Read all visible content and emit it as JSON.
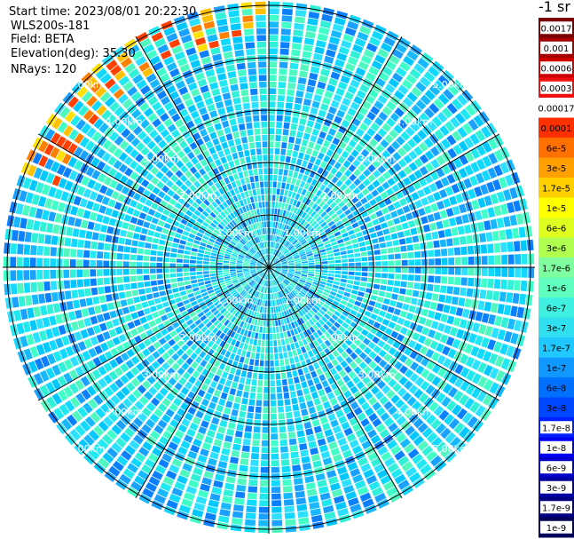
{
  "header": {
    "start_time": "Start time: 2023/08/01 20:22:30",
    "instrument": "WLS200s-181",
    "field": "Field: BETA",
    "elevation": "Elevation(deg): 35.30",
    "nrays": "NRays: 120"
  },
  "colorbar": {
    "unit_label": "-1 sr",
    "ticks": [
      "0.0017",
      "0.001",
      "0.0006",
      "0.0003",
      "0.00017",
      "0.0001",
      "6e-5",
      "3e-5",
      "1.7e-5",
      "1e-5",
      "6e-6",
      "3e-6",
      "1.7e-6",
      "1e-6",
      "6e-7",
      "3e-7",
      "1.7e-7",
      "1e-7",
      "6e-8",
      "3e-8",
      "1.7e-8",
      "1e-8",
      "6e-9",
      "3e-9",
      "1.7e-9",
      "1e-9"
    ],
    "colors": [
      "#7a0000",
      "#a30000",
      "#cc0000",
      "#ee1010",
      "#ffffff",
      "#ff3000",
      "#ff7000",
      "#ffa000",
      "#ffd000",
      "#ffff00",
      "#e0ff20",
      "#b0ff50",
      "#80ffa0",
      "#60ffc0",
      "#40f0e0",
      "#30e0f0",
      "#20c8ff",
      "#1098ff",
      "#0070ff",
      "#0048ff",
      "#0020ff",
      "#0000f0",
      "#0000c8",
      "#0000a0",
      "#000080",
      "#00005a"
    ]
  },
  "range_labels": [
    "1.00km",
    "2.00km",
    "3.00km",
    "4.00km",
    "5.00km"
  ],
  "colors": {
    "background": "#ffffff",
    "grid": "#000000",
    "ray_gap": "#ffffff"
  },
  "chart_data": {
    "type": "heatmap",
    "projection": "polar PPI",
    "field": "BETA",
    "n_rays": 120,
    "range_rings_km": [
      1,
      2,
      3,
      4,
      5
    ],
    "max_range_km": 5.0,
    "colorbar_range": [
      1e-09,
      0.0017
    ],
    "colorbar_scale": "log",
    "dominant_values": "mostly 1e-7 to 1e-8 (cyan/blue), with 3e-5 to 0.0003 (yellow/orange/red) near range 5 km toward the north-northwest",
    "grid": true
  }
}
